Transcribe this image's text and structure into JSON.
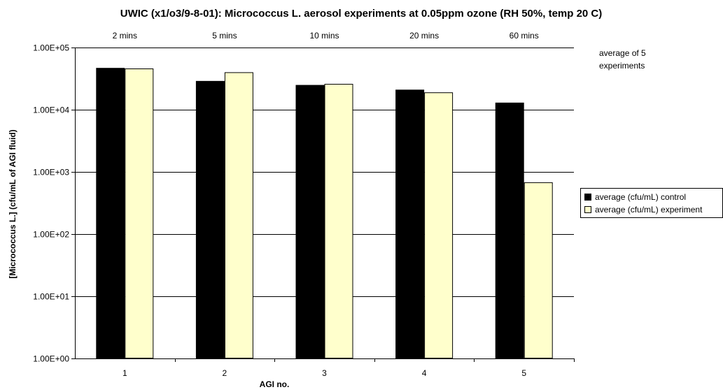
{
  "chart_data": {
    "type": "bar",
    "title": "UWIC (x1/o3/9-8-01): Micrococcus L. aerosol experiments at 0.05ppm ozone (RH 50%, temp 20 C)",
    "xlabel": "AGI no.",
    "ylabel": "[Micrococcus L.] (cfu/mL of AGI fluid)",
    "yscale": "log",
    "ylim": [
      1,
      100000
    ],
    "yticks": [
      "1.00E+00",
      "1.00E+01",
      "1.00E+02",
      "1.00E+03",
      "1.00E+04",
      "1.00E+05"
    ],
    "categories": [
      "1",
      "2",
      "3",
      "4",
      "5"
    ],
    "category_annotations": [
      "2 mins",
      "5 mins",
      "10 mins",
      "20 mins",
      "60 mins"
    ],
    "side_note": [
      "average of 5",
      "experiments"
    ],
    "series": [
      {
        "name": "average (cfu/mL) control",
        "color": "#000000",
        "values": [
          47000,
          29000,
          25000,
          21000,
          13000
        ]
      },
      {
        "name": "average (cfu/mL) experiment",
        "color": "#ffffcc",
        "values": [
          46000,
          40000,
          26000,
          19000,
          680
        ]
      }
    ],
    "grid": true,
    "legend_position": "right"
  }
}
